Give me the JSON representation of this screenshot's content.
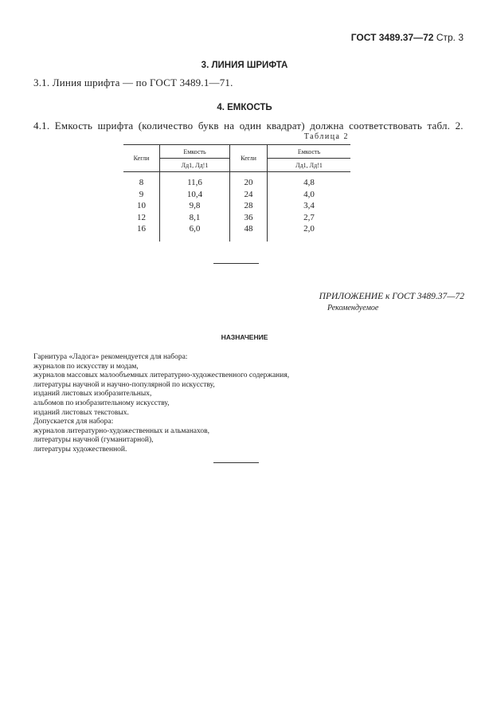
{
  "header": {
    "doc": "ГОСТ 3489.37—72",
    "page": "Стр. 3"
  },
  "section3": {
    "title": "3. ЛИНИЯ ШРИФТА",
    "p1": "3.1. Линия шрифта — по ГОСТ 3489.1—71."
  },
  "section4": {
    "title": "4. ЕМКОСТЬ",
    "p1": "4.1. Емкость шрифта (количество букв на один квадрат) должна соответствовать табл. 2."
  },
  "table": {
    "caption": "Таблица 2",
    "col_size": "Кегли",
    "col_capacity": "Емкость",
    "col_sub": "Лд1, Лд!1",
    "left": [
      [
        "8",
        "11,6"
      ],
      [
        "9",
        "10,4"
      ],
      [
        "10",
        "9,8"
      ],
      [
        "12",
        "8,1"
      ],
      [
        "16",
        "6,0"
      ]
    ],
    "right": [
      [
        "20",
        "4,8"
      ],
      [
        "24",
        "4,0"
      ],
      [
        "28",
        "3,4"
      ],
      [
        "36",
        "2,7"
      ],
      [
        "48",
        "2,0"
      ]
    ]
  },
  "appendix": {
    "title": "ПРИЛОЖЕНИЕ к ГОСТ 3489.37—72",
    "subtitle": "Рекомендуемое",
    "heading": "НАЗНАЧЕНИЕ",
    "lines": [
      "Гарнитура «Ладога» рекомендуется для набора:",
      "журналов по искусству и модам,",
      "журналов массовых малообъемных литературно-художественного содержания,",
      "литературы научной и научно-популярной по искусству,",
      "изданий листовых изобразительных,",
      "альбомов по изобразительному искусству,",
      "изданий листовых текстовых.",
      "Допускается для набора:",
      "журналов литературно-художественных и альманахов,",
      "литературы научной (гуманитарной),",
      "литературы художественной."
    ]
  }
}
